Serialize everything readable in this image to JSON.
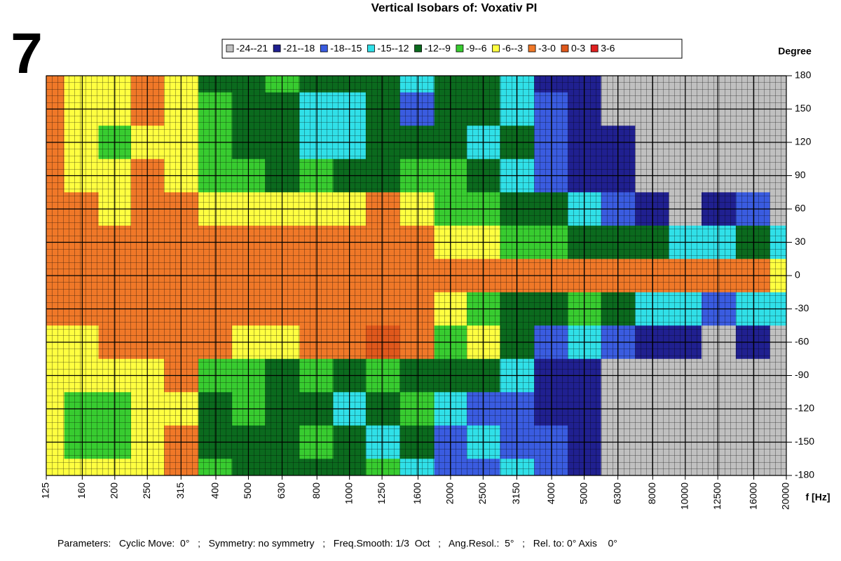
{
  "chart_data": {
    "type": "heatmap",
    "title": "Vertical Isobars of:   Voxativ  PI",
    "page_number": "7",
    "y_label": "Degree",
    "x_label": "f [Hz]",
    "parameters": "Parameters:   Cyclic Move:  0°   ;   Symmetry: no symmetry   ;   Freq.Smooth: 1/3  Oct   ;   Ang.Resol.:  5°   ;   Rel. to: 0° Axis    0°",
    "legend": [
      {
        "label": "-24--21",
        "color": "#c0c0c0"
      },
      {
        "label": "-21--18",
        "color": "#202090"
      },
      {
        "label": "-18--15",
        "color": "#3a5ce0"
      },
      {
        "label": "-15--12",
        "color": "#30e0e8"
      },
      {
        "label": "-12--9",
        "color": "#0b6a1e"
      },
      {
        "label": "-9--6",
        "color": "#38cc30"
      },
      {
        "label": "-6--3",
        "color": "#ffff40"
      },
      {
        "label": "-3-0",
        "color": "#f07828"
      },
      {
        "label": "0-3",
        "color": "#e0581c"
      },
      {
        "label": "3-6",
        "color": "#e02020"
      }
    ],
    "levels": [
      -24,
      -21,
      -18,
      -15,
      -12,
      -9,
      -6,
      -3,
      0,
      3,
      6
    ],
    "x_log": true,
    "xlim": [
      125,
      20000
    ],
    "xticks": [
      125,
      160,
      200,
      250,
      315,
      400,
      500,
      630,
      800,
      1000,
      1250,
      1600,
      2000,
      2500,
      3150,
      4000,
      5000,
      6300,
      8000,
      10000,
      12500,
      16000,
      20000
    ],
    "ylim": [
      -180,
      180
    ],
    "yticks": [
      180,
      150,
      120,
      90,
      60,
      30,
      0,
      -30,
      -60,
      -90,
      -120,
      -150,
      -180
    ],
    "grid": true,
    "x": [
      125,
      160,
      200,
      250,
      315,
      400,
      500,
      630,
      800,
      1000,
      1250,
      1600,
      2000,
      2500,
      3150,
      4000,
      5000,
      6300,
      8000,
      10000,
      12500,
      16000,
      20000
    ],
    "y": [
      180,
      150,
      120,
      90,
      60,
      30,
      0,
      -30,
      -60,
      -90,
      -120,
      -150,
      -180
    ],
    "z": [
      [
        -1.5,
        -4.5,
        -4.5,
        -1.5,
        -4.5,
        -10.5,
        -10.5,
        -7.5,
        -10.5,
        -10.5,
        -10.5,
        -13.5,
        -10.5,
        -10.5,
        -13.5,
        -19.5,
        -19.5,
        -22.5,
        -22.5,
        -22.5,
        -22.5,
        -22.5,
        -22.5
      ],
      [
        -1.5,
        -4.5,
        -4.5,
        -1.5,
        -4.5,
        -7.5,
        -10.5,
        -10.5,
        -13.5,
        -13.5,
        -10.5,
        -16.5,
        -10.5,
        -10.5,
        -13.5,
        -16.5,
        -19.5,
        -22.5,
        -22.5,
        -22.5,
        -22.5,
        -22.5,
        -22.5
      ],
      [
        -1.5,
        -4.5,
        -7.5,
        -4.5,
        -4.5,
        -7.5,
        -10.5,
        -10.5,
        -13.5,
        -13.5,
        -10.5,
        -10.5,
        -10.5,
        -13.5,
        -10.5,
        -16.5,
        -19.5,
        -19.5,
        -22.5,
        -22.5,
        -22.5,
        -22.5,
        -22.5
      ],
      [
        -1.5,
        -4.5,
        -4.5,
        -1.5,
        -4.5,
        -7.5,
        -7.5,
        -10.5,
        -7.5,
        -10.5,
        -10.5,
        -7.5,
        -7.5,
        -10.5,
        -13.5,
        -16.5,
        -19.5,
        -19.5,
        -22.5,
        -22.5,
        -22.5,
        -22.5,
        -22.5
      ],
      [
        -1.5,
        -1.5,
        -4.5,
        -1.5,
        -1.5,
        -4.5,
        -4.5,
        -4.5,
        -4.5,
        -4.5,
        -1.5,
        -4.5,
        -7.5,
        -7.5,
        -10.5,
        -10.5,
        -13.5,
        -16.5,
        -19.5,
        -22.5,
        -19.5,
        -16.5,
        -22.5
      ],
      [
        -1.5,
        -1.5,
        -1.5,
        -1.5,
        -1.5,
        -1.5,
        -1.5,
        -1.5,
        -1.5,
        -1.5,
        -1.5,
        -1.5,
        -4.5,
        -4.5,
        -7.5,
        -7.5,
        -10.5,
        -10.5,
        -10.5,
        -13.5,
        -13.5,
        -10.5,
        -13.5
      ],
      [
        -1.5,
        -1.5,
        -1.5,
        -1.5,
        -1.5,
        -1.5,
        -1.5,
        -1.5,
        -1.5,
        -1.5,
        -1.5,
        -1.5,
        -1.5,
        -1.5,
        -1.5,
        -1.5,
        -1.5,
        -1.5,
        -1.5,
        -1.5,
        -1.5,
        -1.5,
        -4.5
      ],
      [
        -1.5,
        -1.5,
        -1.5,
        -1.5,
        -1.5,
        -1.5,
        -1.5,
        -1.5,
        -1.5,
        -1.5,
        -1.5,
        -1.5,
        -4.5,
        -7.5,
        -10.5,
        -10.5,
        -7.5,
        -10.5,
        -13.5,
        -13.5,
        -16.5,
        -13.5,
        -13.5
      ],
      [
        -4.5,
        -4.5,
        -1.5,
        -1.5,
        -1.5,
        -1.5,
        -4.5,
        -4.5,
        -1.5,
        -1.5,
        1.5,
        -1.5,
        -7.5,
        -4.5,
        -10.5,
        -16.5,
        -13.5,
        -16.5,
        -19.5,
        -19.5,
        -22.5,
        -19.5,
        -22.5
      ],
      [
        -4.5,
        -4.5,
        -4.5,
        -4.5,
        -1.5,
        -7.5,
        -7.5,
        -10.5,
        -7.5,
        -10.5,
        -7.5,
        -10.5,
        -10.5,
        -10.5,
        -13.5,
        -19.5,
        -19.5,
        -22.5,
        -22.5,
        -22.5,
        -22.5,
        -22.5,
        -22.5
      ],
      [
        -4.5,
        -7.5,
        -7.5,
        -4.5,
        -4.5,
        -10.5,
        -7.5,
        -10.5,
        -10.5,
        -13.5,
        -10.5,
        -7.5,
        -13.5,
        -16.5,
        -16.5,
        -19.5,
        -19.5,
        -22.5,
        -22.5,
        -22.5,
        -22.5,
        -22.5,
        -22.5
      ],
      [
        -4.5,
        -7.5,
        -7.5,
        -4.5,
        -1.5,
        -10.5,
        -10.5,
        -10.5,
        -7.5,
        -10.5,
        -13.5,
        -10.5,
        -16.5,
        -13.5,
        -16.5,
        -16.5,
        -19.5,
        -22.5,
        -22.5,
        -22.5,
        -22.5,
        -22.5,
        -22.5
      ],
      [
        -4.5,
        -4.5,
        -4.5,
        -4.5,
        -1.5,
        -7.5,
        -10.5,
        -10.5,
        -10.5,
        -10.5,
        -7.5,
        -13.5,
        -16.5,
        -16.5,
        -13.5,
        -16.5,
        -19.5,
        -22.5,
        -22.5,
        -22.5,
        -22.5,
        -22.5,
        -22.5
      ]
    ]
  }
}
